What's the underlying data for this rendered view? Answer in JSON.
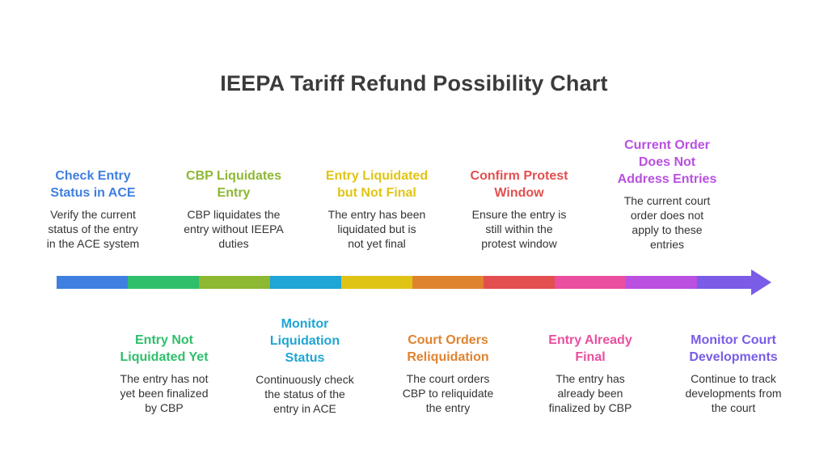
{
  "title": "IEEPA Tariff Refund Possibility Chart",
  "steps": [
    {
      "title": "Check Entry\nStatus in ACE",
      "desc": "Verify the current\nstatus of the entry\nin the ACE system",
      "color": "#3f7fe0"
    },
    {
      "title": "Entry Not\nLiquidated Yet",
      "desc": "The entry has not\nyet been finalized\nby CBP",
      "color": "#2fbf6b"
    },
    {
      "title": "CBP Liquidates\nEntry",
      "desc": "CBP liquidates the\nentry without IEEPA\nduties",
      "color": "#8db832"
    },
    {
      "title": "Monitor\nLiquidation\nStatus",
      "desc": "Continuously check\nthe status of the\nentry in ACE",
      "color": "#1fa5d6"
    },
    {
      "title": "Entry Liquidated\nbut Not Final",
      "desc": "The entry has been\nliquidated but is\nnot yet final",
      "color": "#e0c415"
    },
    {
      "title": "Court Orders\nReliquidation",
      "desc": "The court orders\nCBP to reliquidate\nthe entry",
      "color": "#e0832f"
    },
    {
      "title": "Confirm Protest\nWindow",
      "desc": "Ensure the entry is\nstill within the\nprotest window",
      "color": "#e34f4f"
    },
    {
      "title": "Entry Already\nFinal",
      "desc": "The entry has\nalready been\nfinalized by CBP",
      "color": "#e94f9e"
    },
    {
      "title": "Current Order\nDoes Not\nAddress Entries",
      "desc": "The current court\norder does not\napply to these\nentries",
      "color": "#b950e0"
    },
    {
      "title": "Monitor Court\nDevelopments",
      "desc": "Continue to track\ndevelopments from\nthe court",
      "color": "#7a5ce6"
    }
  ]
}
